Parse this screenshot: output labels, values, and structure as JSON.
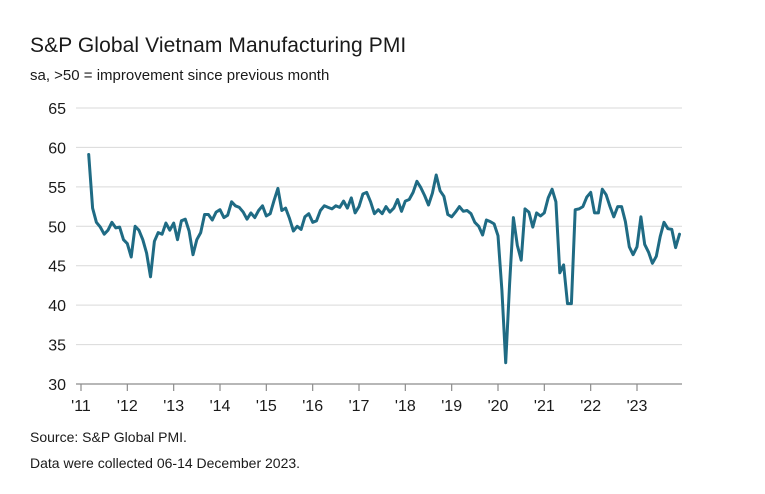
{
  "title": "S&P Global Vietnam Manufacturing PMI",
  "subtitle": "sa, >50 = improvement since previous month",
  "source": "Source: S&P Global PMI.",
  "collected": "Data were collected 06-14 December 2023.",
  "colors": {
    "line": "#1f6b84",
    "grid": "#d9d9d9",
    "axis": "#8c8c8c"
  },
  "chart_data": {
    "type": "line",
    "title": "S&P Global Vietnam Manufacturing PMI",
    "subtitle": "sa, >50 = improvement since previous month",
    "xlabel": "",
    "ylabel": "",
    "ylim": [
      30,
      65
    ],
    "yticks": [
      30,
      35,
      40,
      45,
      50,
      55,
      60,
      65
    ],
    "xtick_labels": [
      "'11",
      "'12",
      "'13",
      "'14",
      "'15",
      "'16",
      "'17",
      "'18",
      "'19",
      "'20",
      "'21",
      "'22",
      "'23"
    ],
    "grid": "horizontal",
    "legend": "none",
    "series": [
      {
        "start": "2011-03",
        "frequency": "monthly",
        "end": "2023-11",
        "values": [
          59.1,
          52.3,
          50.5,
          49.9,
          49.0,
          49.5,
          50.5,
          49.8,
          49.9,
          48.3,
          47.8,
          46.1,
          50.0,
          49.5,
          48.3,
          46.6,
          43.6,
          48.1,
          49.2,
          49.0,
          50.4,
          49.5,
          50.4,
          48.3,
          50.7,
          50.9,
          49.4,
          46.4,
          48.3,
          49.2,
          51.5,
          51.5,
          50.8,
          51.8,
          52.1,
          51.1,
          51.4,
          53.1,
          52.6,
          52.4,
          51.8,
          50.9,
          51.7,
          51.1,
          52.0,
          52.6,
          51.3,
          51.6,
          53.3,
          54.8,
          52.0,
          52.3,
          51.0,
          49.4,
          50.0,
          49.6,
          51.2,
          51.6,
          50.5,
          50.7,
          52.0,
          52.6,
          52.4,
          52.2,
          52.6,
          52.4,
          53.2,
          52.3,
          53.6,
          51.7,
          52.5,
          54.1,
          54.3,
          53.1,
          51.6,
          52.1,
          51.6,
          52.5,
          51.8,
          52.3,
          53.4,
          51.9,
          53.2,
          53.4,
          54.3,
          55.7,
          54.9,
          53.9,
          52.7,
          54.2,
          56.5,
          54.5,
          53.8,
          51.5,
          51.2,
          51.8,
          52.5,
          51.9,
          52.0,
          51.6,
          50.5,
          50.0,
          48.9,
          50.8,
          50.6,
          50.3,
          48.8,
          41.9,
          32.7,
          42.7,
          51.1,
          47.6,
          45.7,
          52.2,
          51.8,
          49.9,
          51.7,
          51.3,
          51.7,
          53.6,
          54.7,
          53.1,
          44.1,
          45.1,
          40.2,
          40.2,
          52.1,
          52.2,
          52.5,
          53.7,
          54.3,
          51.7,
          51.7,
          54.7,
          54.0,
          52.5,
          51.2,
          52.5,
          52.5,
          50.6,
          47.4,
          46.4,
          47.4,
          51.2,
          47.7,
          46.7,
          45.3,
          46.2,
          48.7,
          50.5,
          49.7,
          49.6,
          47.3,
          49.0
        ]
      }
    ]
  }
}
